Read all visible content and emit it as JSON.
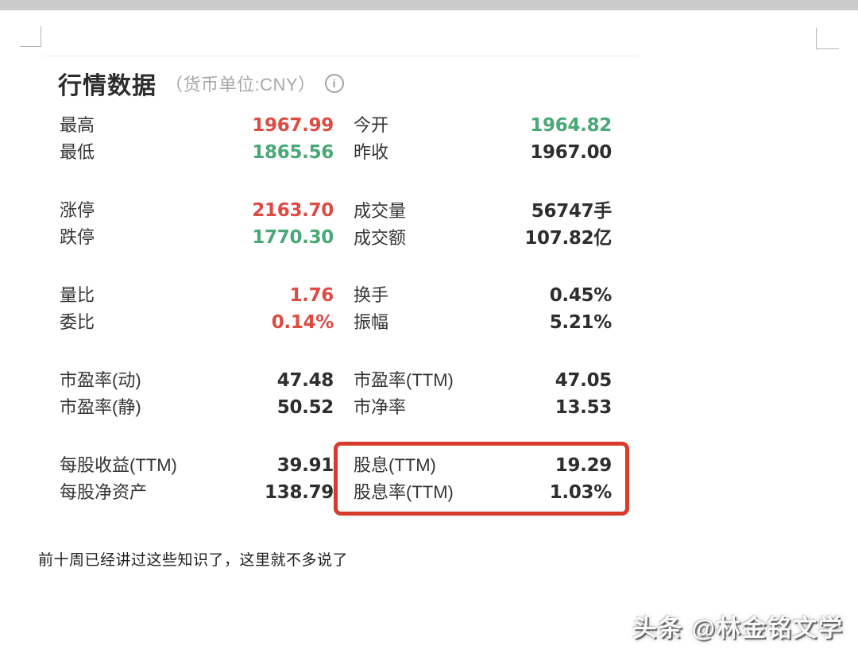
{
  "header": {
    "title": "行情数据",
    "subtitle": "（货币单位:CNY）",
    "info_glyph": "i"
  },
  "colors": {
    "up_red": "#dd4b42",
    "down_green": "#4aa876",
    "neutral_dark": "#2e2e2e",
    "highlight_border_red": "#d63b2c",
    "subtitle_gray": "#a8a8a8",
    "top_strip_gray": "#cbcbcb"
  },
  "groups": [
    {
      "rows": [
        {
          "left": {
            "label": "最高",
            "value": "1967.99"
          },
          "right": {
            "label": "今开",
            "value": "1964.82"
          }
        },
        {
          "left": {
            "label": "最低",
            "value": "1865.56"
          },
          "right": {
            "label": "昨收",
            "value": "1967.00"
          }
        }
      ]
    },
    {
      "rows": [
        {
          "left": {
            "label": "涨停",
            "value": "2163.70"
          },
          "right": {
            "label": "成交量",
            "value": "56747手"
          }
        },
        {
          "left": {
            "label": "跌停",
            "value": "1770.30"
          },
          "right": {
            "label": "成交额",
            "value": "107.82亿"
          }
        }
      ]
    },
    {
      "rows": [
        {
          "left": {
            "label": "量比",
            "value": "1.76"
          },
          "right": {
            "label": "换手",
            "value": "0.45%"
          }
        },
        {
          "left": {
            "label": "委比",
            "value": "0.14%"
          },
          "right": {
            "label": "振幅",
            "value": "5.21%"
          }
        }
      ]
    },
    {
      "rows": [
        {
          "left": {
            "label": "市盈率(动)",
            "value": "47.48"
          },
          "right": {
            "label": "市盈率(TTM)",
            "value": "47.05"
          }
        },
        {
          "left": {
            "label": "市盈率(静)",
            "value": "50.52"
          },
          "right": {
            "label": "市净率",
            "value": "13.53"
          }
        }
      ]
    },
    {
      "rows": [
        {
          "left": {
            "label": "每股收益(TTM)",
            "value": "39.91"
          },
          "right": {
            "label": "股息(TTM)",
            "value": "19.29"
          }
        },
        {
          "left": {
            "label": "每股净资产",
            "value": "138.79"
          },
          "right": {
            "label": "股息率(TTM)",
            "value": "1.03%"
          }
        }
      ]
    }
  ],
  "note": "前十周已经讲过这些知识了，这里就不多说了",
  "watermark": "头条 @林金铭文学"
}
